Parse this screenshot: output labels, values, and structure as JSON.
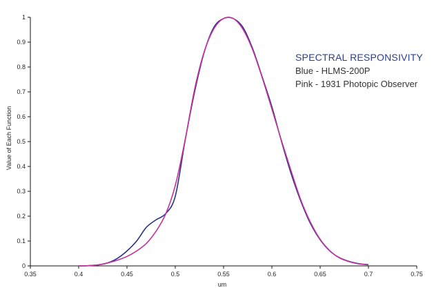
{
  "annotation": {
    "title": "SPECTRAL RESPONSIVITY",
    "line1": "Blue - HLMS-200P",
    "line2": "Pink - 1931 Photopic Observer"
  },
  "colors": {
    "blue_series": "#2b2f8a",
    "pink_series": "#c4329b",
    "title_text": "#2b3d8f"
  },
  "chart_data": {
    "type": "line",
    "title": "",
    "xlabel": "um",
    "ylabel": "Value of Each Function",
    "xlim": [
      0.35,
      0.75
    ],
    "ylim": [
      0,
      1
    ],
    "x_ticks": [
      "0.35",
      "0.4",
      "0.45",
      "0.5",
      "0.55",
      "0.6",
      "0.65",
      "0.7",
      "0.75"
    ],
    "y_ticks": [
      "0",
      "0.1",
      "0.2",
      "0.3",
      "0.4",
      "0.5",
      "0.6",
      "0.7",
      "0.8",
      "0.9",
      "1"
    ],
    "grid": false,
    "legend": "none",
    "series": [
      {
        "color": "#2b2f8a",
        "x": [
          0.4,
          0.41,
          0.42,
          0.43,
          0.44,
          0.45,
          0.46,
          0.47,
          0.48,
          0.49,
          0.5,
          0.51,
          0.52,
          0.53,
          0.54,
          0.55,
          0.56,
          0.57,
          0.58,
          0.59,
          0.6,
          0.61,
          0.62,
          0.63,
          0.64,
          0.65,
          0.66,
          0.67,
          0.68,
          0.69,
          0.7
        ],
        "y": [
          0.0,
          0.001,
          0.004,
          0.012,
          0.03,
          0.06,
          0.1,
          0.155,
          0.185,
          0.21,
          0.28,
          0.5,
          0.7,
          0.86,
          0.96,
          0.995,
          0.995,
          0.96,
          0.875,
          0.76,
          0.64,
          0.5,
          0.37,
          0.26,
          0.17,
          0.105,
          0.06,
          0.033,
          0.018,
          0.009,
          0.005
        ]
      },
      {
        "color": "#c4329b",
        "x": [
          0.4,
          0.41,
          0.42,
          0.43,
          0.44,
          0.45,
          0.46,
          0.47,
          0.48,
          0.49,
          0.5,
          0.51,
          0.52,
          0.53,
          0.54,
          0.55,
          0.56,
          0.57,
          0.58,
          0.59,
          0.6,
          0.61,
          0.62,
          0.63,
          0.64,
          0.65,
          0.66,
          0.67,
          0.68,
          0.69,
          0.7
        ],
        "y": [
          0.0,
          0.001,
          0.004,
          0.012,
          0.023,
          0.038,
          0.06,
          0.09,
          0.139,
          0.208,
          0.323,
          0.503,
          0.71,
          0.862,
          0.954,
          0.995,
          0.995,
          0.952,
          0.87,
          0.757,
          0.631,
          0.503,
          0.381,
          0.265,
          0.175,
          0.107,
          0.061,
          0.032,
          0.017,
          0.008,
          0.004
        ]
      }
    ]
  }
}
